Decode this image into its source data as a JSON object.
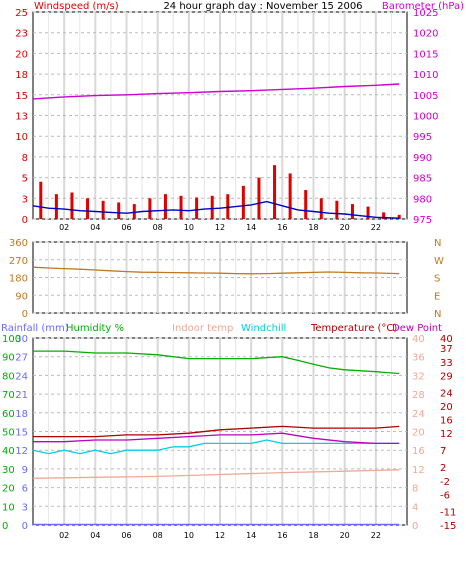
{
  "page": {
    "title": "24 hour graph day : November 15 2006"
  },
  "colors": {
    "windspeed": "#e00000",
    "windavg": "#0000c0",
    "barometer": "#d000d0",
    "winddir": "#c07820",
    "rainfall": "#6a6aff",
    "humidity": "#00b000",
    "indoor": "#f0a898",
    "windchill": "#00d0e0",
    "temperature": "#b00000",
    "dewpoint": "#c000c0",
    "grid": "#cccccc",
    "axis": "#000000"
  },
  "chart_data": [
    {
      "type": "line",
      "title": "24 hour graph day : November 15 2006",
      "x_ticks": [
        "02",
        "04",
        "06",
        "08",
        "10",
        "12",
        "14",
        "16",
        "18",
        "20",
        "22"
      ],
      "left_axis": {
        "label": "Windspeed (m/s)",
        "ticks": [
          0,
          3,
          5,
          8,
          10,
          13,
          15,
          18,
          20,
          23,
          25
        ],
        "ylim": [
          0,
          25
        ]
      },
      "right_axis": {
        "label": "Barometer (hPa)",
        "ticks": [
          975,
          980,
          985,
          990,
          995,
          1000,
          1005,
          1010,
          1015,
          1020,
          1025
        ],
        "ylim": [
          975,
          1025
        ]
      },
      "series": [
        {
          "name": "Windspeed (m/s)",
          "axis": "left",
          "style": "bars",
          "x": [
            0.5,
            1.5,
            2.5,
            3.5,
            4.5,
            5.5,
            6.5,
            7.5,
            8.5,
            9.5,
            10.5,
            11.5,
            12.5,
            13.5,
            14.5,
            15.5,
            16.5,
            17.5,
            18.5,
            19.5,
            20.5,
            21.5,
            22.5,
            23.5
          ],
          "values": [
            4.5,
            3.0,
            3.2,
            2.5,
            2.2,
            2.0,
            1.8,
            2.5,
            3.0,
            2.8,
            2.6,
            2.8,
            3.0,
            4.0,
            5.0,
            6.5,
            5.5,
            3.5,
            2.5,
            2.2,
            1.8,
            1.5,
            0.8,
            0.5
          ]
        },
        {
          "name": "Wind average",
          "axis": "left",
          "x": [
            0,
            1,
            2,
            3,
            4,
            5,
            6,
            7,
            8,
            9,
            10,
            11,
            12,
            13,
            14,
            15,
            16,
            17,
            18,
            19,
            20,
            21,
            22,
            23.5
          ],
          "values": [
            1.6,
            1.3,
            1.2,
            1.0,
            0.9,
            0.8,
            0.7,
            0.9,
            1.0,
            1.1,
            1.0,
            1.2,
            1.3,
            1.5,
            1.7,
            2.1,
            1.6,
            1.1,
            0.9,
            0.7,
            0.6,
            0.4,
            0.2,
            0.1
          ]
        },
        {
          "name": "Barometer (hPa)",
          "axis": "right",
          "x": [
            0,
            2,
            4,
            6,
            8,
            10,
            12,
            14,
            16,
            18,
            20,
            22,
            23.5
          ],
          "values": [
            1004.0,
            1004.5,
            1004.8,
            1005.0,
            1005.3,
            1005.5,
            1005.8,
            1006.0,
            1006.3,
            1006.6,
            1007.0,
            1007.3,
            1007.6
          ]
        }
      ]
    },
    {
      "type": "line",
      "title": "",
      "x_ticks": [],
      "left_axis": {
        "ticks": [
          0,
          90,
          180,
          270,
          360
        ],
        "ylim": [
          0,
          360
        ]
      },
      "right_axis": {
        "ticks": [
          "N",
          "W",
          "S",
          "E",
          "N"
        ]
      },
      "series": [
        {
          "name": "Wind direction",
          "x": [
            0,
            1,
            2,
            3,
            4,
            5,
            6,
            7,
            8,
            9,
            10,
            11,
            12,
            13,
            14,
            15,
            16,
            17,
            18,
            19,
            20,
            21,
            22,
            23.5
          ],
          "values": [
            232,
            228,
            225,
            222,
            218,
            214,
            210,
            207,
            206,
            205,
            204,
            203,
            202,
            200,
            199,
            200,
            202,
            204,
            206,
            208,
            206,
            204,
            203,
            200
          ]
        }
      ]
    },
    {
      "type": "line",
      "title": "",
      "x_ticks": [
        "02",
        "04",
        "06",
        "08",
        "10",
        "12",
        "14",
        "16",
        "18",
        "20",
        "22"
      ],
      "legend": [
        "Rainfall (mm)",
        "Humidity %",
        "Indoor temp",
        "Windchill",
        "Temperature (°C)",
        "Dew Point"
      ],
      "axes": {
        "rainfall": {
          "label": "Rainfall (mm)",
          "ticks": [
            0,
            3,
            6,
            9,
            12,
            15,
            18,
            21,
            24,
            27,
            30
          ],
          "ylim": [
            0,
            30
          ]
        },
        "humidity": {
          "label": "Humidity %",
          "ticks": [
            0,
            10,
            20,
            30,
            40,
            50,
            60,
            70,
            80,
            90,
            100
          ],
          "ylim": [
            0,
            100
          ]
        },
        "indoor": {
          "label": "Indoor temp",
          "ticks": [
            0,
            4,
            8,
            12,
            16,
            20,
            24,
            28,
            32,
            36,
            40
          ],
          "ylim": [
            0,
            40
          ]
        },
        "temperature": {
          "label": "Temperature (°C)",
          "ticks": [
            -15,
            -11,
            -6,
            -2,
            2,
            7,
            12,
            16,
            20,
            24,
            29,
            33,
            37,
            40
          ],
          "ylim": [
            -15,
            40
          ]
        }
      },
      "series": [
        {
          "name": "Rainfall (mm)",
          "axis": "rainfall",
          "x": [
            0,
            23.5
          ],
          "values": [
            0.1,
            0.1
          ]
        },
        {
          "name": "Humidity %",
          "axis": "humidity",
          "x": [
            0,
            2,
            4,
            6,
            8,
            10,
            12,
            14,
            16,
            17,
            18,
            19,
            20,
            22,
            23.5
          ],
          "values": [
            93,
            93,
            92,
            92,
            91,
            89,
            89,
            89,
            90,
            88,
            86,
            84,
            83,
            82,
            81
          ]
        },
        {
          "name": "Indoor temp",
          "axis": "indoor",
          "x": [
            0,
            4,
            8,
            12,
            16,
            20,
            23.5
          ],
          "values": [
            10,
            10.2,
            10.4,
            10.8,
            11.2,
            11.5,
            11.8
          ]
        },
        {
          "name": "Windchill",
          "axis": "temperature",
          "x": [
            0,
            1,
            2,
            3,
            4,
            5,
            6,
            7,
            8,
            9,
            10,
            11,
            12,
            13,
            14,
            15,
            16,
            17,
            18,
            19,
            20,
            21,
            22,
            23.5
          ],
          "values": [
            7,
            6,
            7,
            6,
            7,
            6,
            7,
            7,
            7,
            8,
            8,
            9,
            9,
            9,
            9,
            10,
            9,
            9,
            9,
            9,
            9,
            9,
            9,
            9
          ]
        },
        {
          "name": "Temperature (°C)",
          "axis": "temperature",
          "x": [
            0,
            2,
            4,
            6,
            8,
            10,
            12,
            14,
            16,
            18,
            20,
            22,
            23.5
          ],
          "values": [
            11,
            11,
            11,
            11.5,
            11.5,
            12,
            13,
            13.5,
            14,
            13.5,
            13.5,
            13.5,
            14
          ]
        },
        {
          "name": "Dew Point",
          "axis": "temperature",
          "x": [
            0,
            2,
            4,
            6,
            8,
            10,
            12,
            14,
            16,
            18,
            20,
            22,
            23.5
          ],
          "values": [
            9.5,
            9.5,
            10,
            10,
            10.5,
            11,
            11.5,
            11.5,
            12,
            10.5,
            9.5,
            9,
            9
          ]
        }
      ]
    }
  ]
}
